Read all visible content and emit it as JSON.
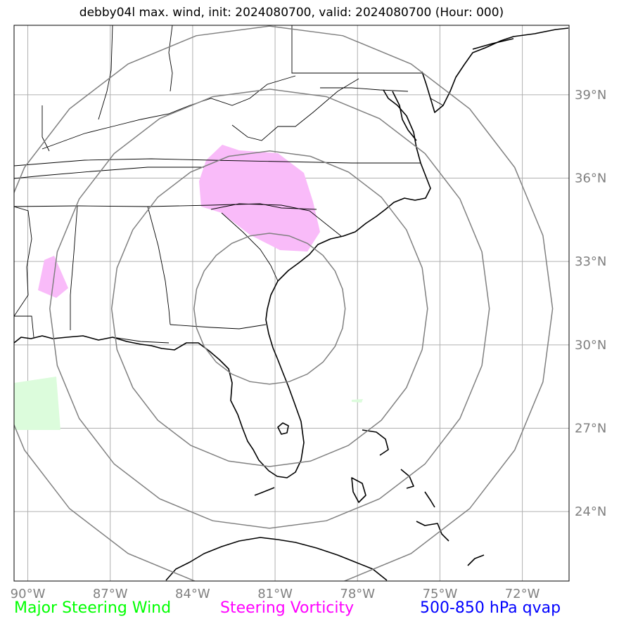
{
  "title": "debby04l max. wind, init: 2024080700, valid: 2024080700 (Hour: 000)",
  "map": {
    "lon_range": [
      -90.5,
      -70.3
    ],
    "lat_range": [
      21.5,
      41.5
    ],
    "lon_ticks": [
      {
        "value": -90,
        "label": "90°W"
      },
      {
        "value": -87,
        "label": "87°W"
      },
      {
        "value": -84,
        "label": "84°W"
      },
      {
        "value": -81,
        "label": "81°W"
      },
      {
        "value": -78,
        "label": "78°W"
      },
      {
        "value": -75,
        "label": "75°W"
      },
      {
        "value": -72,
        "label": "72°W"
      }
    ],
    "lat_ticks": [
      {
        "value": 39,
        "label": "39°N"
      },
      {
        "value": 36,
        "label": "36°N"
      },
      {
        "value": 33,
        "label": "33°N"
      },
      {
        "value": 30,
        "label": "30°N"
      },
      {
        "value": 27,
        "label": "27°N"
      },
      {
        "value": 24,
        "label": "24°N"
      }
    ],
    "storm_center": {
      "lon": -81.2,
      "lat": 31.3
    },
    "range_rings_deg": [
      2.75,
      5.75,
      8.0,
      10.3
    ],
    "gridlines": true,
    "colors": {
      "wind": "#00ff00",
      "vorticity": "#ff00ff",
      "qvap": "#0000ff",
      "ring": "#808080",
      "grid": "#b0b0b0",
      "tick_label": "#808080"
    }
  },
  "legend": {
    "wind_label": "Major Steering Wind",
    "vorticity_label": "Steering Vorticity",
    "qvap_label": "500-850 hPa qvap"
  }
}
